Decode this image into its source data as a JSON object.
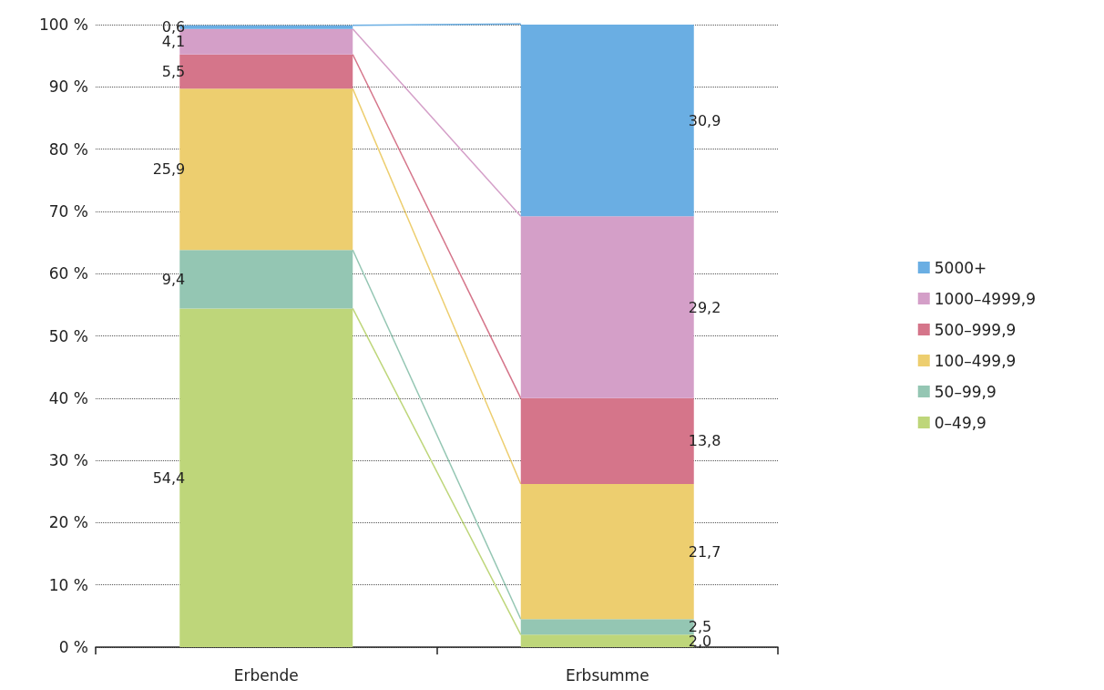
{
  "chart_data": {
    "type": "bar",
    "stacked": true,
    "categories": [
      "Erbende",
      "Erbsumme"
    ],
    "series": [
      {
        "name": "0–49,9",
        "color": "#bed67a",
        "values": [
          54.4,
          2.0
        ],
        "value_labels": [
          "54,4",
          "2,0"
        ]
      },
      {
        "name": "50–99,9",
        "color": "#94c6b3",
        "values": [
          9.4,
          2.5
        ],
        "value_labels": [
          "9,4",
          "2,5"
        ]
      },
      {
        "name": "100–499,9",
        "color": "#edce6f",
        "values": [
          25.9,
          21.7
        ],
        "value_labels": [
          "25,9",
          "21,7"
        ]
      },
      {
        "name": "500–999,9",
        "color": "#d5758a",
        "values": [
          5.5,
          13.8
        ],
        "value_labels": [
          "5,5",
          "13,8"
        ]
      },
      {
        "name": "1000–4999,9",
        "color": "#d49fc8",
        "values": [
          4.1,
          29.2
        ],
        "value_labels": [
          "4,1",
          "29,2"
        ]
      },
      {
        "name": "5000+",
        "color": "#6aaee3",
        "values": [
          0.6,
          30.9
        ],
        "value_labels": [
          "0,6",
          "30,9"
        ]
      }
    ],
    "ylim": [
      0,
      100
    ],
    "yticks": [
      {
        "value": 0,
        "label": "0 %"
      },
      {
        "value": 10,
        "label": "10 %"
      },
      {
        "value": 20,
        "label": "20 %"
      },
      {
        "value": 30,
        "label": "30 %"
      },
      {
        "value": 40,
        "label": "40 %"
      },
      {
        "value": 50,
        "label": "50 %"
      },
      {
        "value": 60,
        "label": "60 %"
      },
      {
        "value": 70,
        "label": "70 %"
      },
      {
        "value": 80,
        "label": "80 %"
      },
      {
        "value": 90,
        "label": "90 %"
      },
      {
        "value": 100,
        "label": "100 %"
      }
    ],
    "grid": "y",
    "legend": "right"
  }
}
